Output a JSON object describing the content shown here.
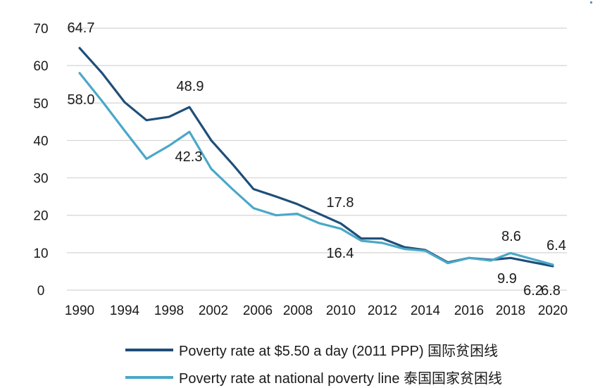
{
  "chart_data": {
    "type": "line",
    "x": [
      1990,
      1992,
      1994,
      1996,
      1998,
      2000,
      2002,
      2004,
      2006,
      2008,
      2009,
      2010,
      2011,
      2012,
      2013,
      2014,
      2015,
      2016,
      2017,
      2018,
      2019,
      2020
    ],
    "x_tick_labels": [
      "1990",
      "1994",
      "1998",
      "2002",
      "2006",
      "2008",
      "2010",
      "2012",
      "2014",
      "2016",
      "2018",
      "2020"
    ],
    "y_ticks": [
      "0",
      "10",
      "20",
      "30",
      "40",
      "50",
      "60",
      "70"
    ],
    "ylim": [
      0,
      70
    ],
    "grid": true,
    "legend_position": "bottom",
    "series": [
      {
        "name": "Poverty rate at $5.50 a day (2011 PPP) 国际贫困线",
        "color": "#1f4e79",
        "values": [
          64.7,
          58.0,
          50.2,
          45.4,
          46.3,
          48.9,
          40.0,
          33.7,
          27.0,
          25.0,
          23.0,
          20.4,
          17.8,
          13.8,
          13.8,
          11.5,
          10.7,
          7.4,
          8.6,
          8.1,
          8.6,
          6.4
        ]
      },
      {
        "name": "Poverty rate at national poverty line 泰国国家贫困线",
        "color": "#4aa8c8",
        "values": [
          58.0,
          50.5,
          42.6,
          35.1,
          38.6,
          42.3,
          32.4,
          27.0,
          21.9,
          20.0,
          20.4,
          17.9,
          16.4,
          13.2,
          12.6,
          11.0,
          10.5,
          7.2,
          8.6,
          7.9,
          9.9,
          6.8
        ]
      }
    ],
    "annotations": [
      "64.7",
      "58.0",
      "48.9",
      "42.3",
      "17.8",
      "16.4",
      "8.6",
      "9.9",
      "6.2",
      "6.8",
      "6.4"
    ]
  }
}
